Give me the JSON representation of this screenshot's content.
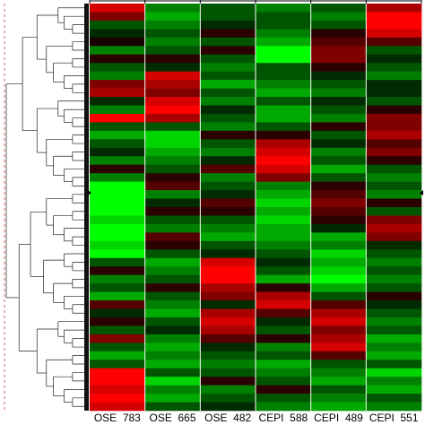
{
  "chart_data": {
    "type": "heatmap",
    "columns": [
      "OSE  783",
      "OSE  665",
      "OSE  482",
      "CEPI  588",
      "CEPI  489",
      "CEPI  551"
    ],
    "low_color": "#00ff00",
    "mid_color": "#000000",
    "high_color": "#ff0000",
    "values": [
      [
        2.5,
        -1.5,
        -1,
        -1.5,
        -1,
        2
      ],
      [
        1.5,
        -2,
        -1,
        -1,
        -1.5,
        3
      ],
      [
        -1,
        -1.5,
        -0.5,
        -1,
        -1,
        3
      ],
      [
        -0.5,
        -1,
        0.5,
        -1.5,
        0.5,
        2.5
      ],
      [
        0.3,
        -1.5,
        -1,
        -2,
        1,
        1
      ],
      [
        -1.5,
        -1,
        0.5,
        -3,
        1.5,
        -1
      ],
      [
        0.5,
        0.5,
        -1,
        -3,
        1.5,
        -0.5
      ],
      [
        -1,
        -0.5,
        -1.5,
        -1,
        0.5,
        -1
      ],
      [
        -1.5,
        2.5,
        -1,
        -1,
        -0.5,
        -1.5
      ],
      [
        1.5,
        2,
        -2,
        -1.5,
        -1,
        -0.5
      ],
      [
        2,
        1.5,
        -1,
        -2,
        -1.5,
        -0.5
      ],
      [
        -0.5,
        2.5,
        -1.5,
        -1,
        -0.5,
        -1
      ],
      [
        -1.5,
        3,
        -0.5,
        -2,
        -1,
        0.5
      ],
      [
        3,
        2,
        -1,
        -2,
        -1.5,
        1.5
      ],
      [
        -1,
        -1,
        -1.5,
        -1,
        0.5,
        1.5
      ],
      [
        -2,
        -2.5,
        0.5,
        0.5,
        -1,
        2
      ],
      [
        -1,
        -2.5,
        -1,
        2,
        -0.5,
        1
      ],
      [
        -0.5,
        -2,
        -1.5,
        2.5,
        -1.5,
        1.5
      ],
      [
        -1.5,
        -1.5,
        -0.5,
        3,
        -1,
        0.5
      ],
      [
        0.5,
        -1,
        1,
        2.5,
        -2,
        -1
      ],
      [
        -1.5,
        0.5,
        -1.5,
        1.5,
        -1,
        -1.5
      ],
      [
        -3,
        1,
        -1,
        -1.5,
        0.5,
        -1
      ],
      [
        -3,
        -1.5,
        -0.5,
        -2,
        1,
        -1.5
      ],
      [
        -3,
        -0.5,
        1,
        -2.5,
        1.5,
        0.5
      ],
      [
        -3,
        0.5,
        0.5,
        -2,
        1,
        -1
      ],
      [
        -2.5,
        -1,
        -1,
        -2.5,
        0.5,
        1.5
      ],
      [
        -3,
        -1.5,
        -1.5,
        -2,
        -0.5,
        2
      ],
      [
        -3,
        1,
        -2,
        -2,
        -2,
        1.5
      ],
      [
        -2.5,
        0.5,
        -1,
        -1.5,
        -1.5,
        -0.5
      ],
      [
        -3,
        -1,
        -0.5,
        -1,
        -2.5,
        -1
      ],
      [
        -1,
        -2,
        2.5,
        -0.5,
        -2,
        -1.5
      ],
      [
        0.5,
        -1.5,
        3,
        -1,
        -2.5,
        -1
      ],
      [
        -1.5,
        -1,
        3,
        -2,
        -3,
        -1.5
      ],
      [
        -1,
        0.5,
        2,
        0.5,
        -2,
        -1
      ],
      [
        -2,
        -1,
        1.5,
        2,
        -1,
        0.5
      ],
      [
        1,
        -1.5,
        -0.5,
        2.5,
        1,
        -0.5
      ],
      [
        -0.5,
        -2,
        2,
        1,
        2,
        -1
      ],
      [
        0.5,
        -1,
        2.5,
        -0.5,
        2.5,
        -1.5
      ],
      [
        -1,
        -0.5,
        2,
        -1,
        1.5,
        -1
      ],
      [
        1.5,
        -1.5,
        1,
        0.5,
        2,
        -2
      ],
      [
        -1,
        -2,
        -0.5,
        -1.5,
        2.5,
        -1.5
      ],
      [
        -2,
        -1.5,
        -1,
        -1,
        1,
        -2
      ],
      [
        -1,
        -2,
        -1.5,
        -2,
        -1,
        -1
      ],
      [
        3,
        -1,
        -1,
        -1.5,
        -1.5,
        -2.5
      ],
      [
        3,
        -2.5,
        0.5,
        -1,
        -2,
        -1.5
      ],
      [
        2.5,
        -1.5,
        -1.5,
        0.5,
        -1,
        -2
      ],
      [
        3,
        -2,
        -1,
        -1,
        -1.5,
        -1
      ],
      [
        2.5,
        -1,
        -0.5,
        -1.5,
        -2,
        -1.5
      ]
    ]
  }
}
